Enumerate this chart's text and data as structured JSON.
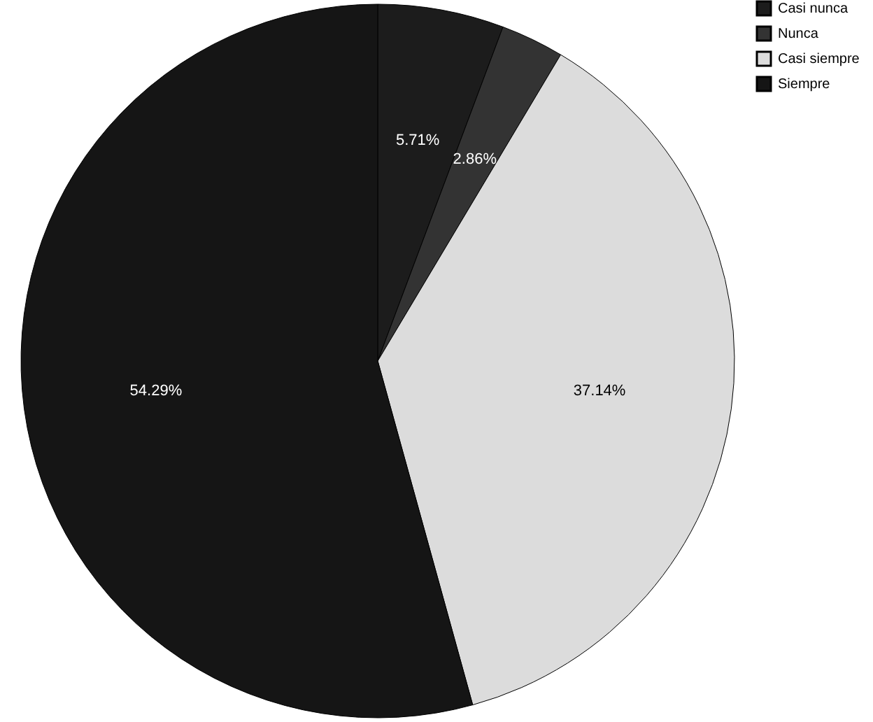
{
  "chart_data": {
    "type": "pie",
    "categories": [
      "Casi nunca",
      "Nunca",
      "Casi siempre",
      "Siempre"
    ],
    "values": [
      5.71,
      2.86,
      37.14,
      54.29
    ],
    "colors": [
      "#1c1c1c",
      "#333333",
      "#dcdcdc",
      "#151515"
    ],
    "value_labels": [
      "5.71%",
      "2.86%",
      "37.14%",
      "54.29%"
    ],
    "legend": "top right"
  }
}
